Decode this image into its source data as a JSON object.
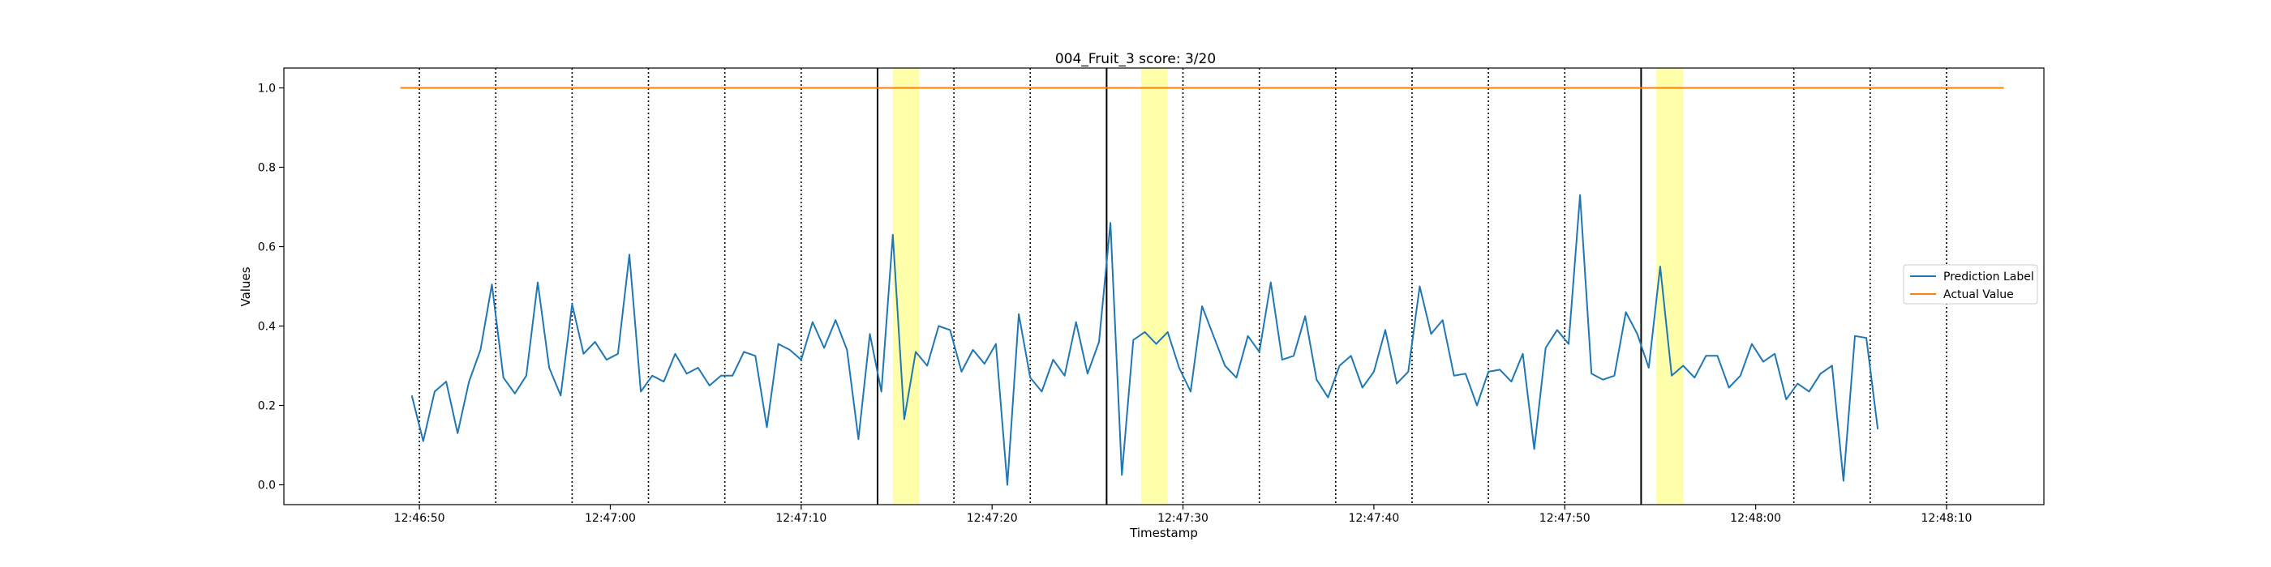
{
  "chart_data": {
    "type": "line",
    "title": "004_Fruit_3 score: 3/20",
    "xlabel": "Timestamp",
    "ylabel": "Values",
    "xlim_seconds": [
      -7.1,
      85.1
    ],
    "x_origin": "12:46:50",
    "ylim": [
      -0.05,
      1.05
    ],
    "yticks": [
      0.0,
      0.2,
      0.4,
      0.6,
      0.8,
      1.0
    ],
    "ytick_labels": [
      "0.0",
      "0.2",
      "0.4",
      "0.6",
      "0.8",
      "1.0"
    ],
    "xticks_seconds": [
      0,
      10,
      20,
      30,
      40,
      50,
      60,
      70,
      80
    ],
    "xtick_labels": [
      "12:46:50",
      "12:47:00",
      "12:47:10",
      "12:47:20",
      "12:47:30",
      "12:47:40",
      "12:47:50",
      "12:48:00",
      "12:48:10"
    ],
    "grid": false,
    "legend_position": "center-right",
    "series": [
      {
        "name": "Prediction Label",
        "color": "#1f77b4",
        "x_start_seconds": -0.4,
        "x_step_seconds": 0.6,
        "values": [
          0.225,
          0.11,
          0.235,
          0.26,
          0.13,
          0.26,
          0.34,
          0.505,
          0.27,
          0.23,
          0.275,
          0.51,
          0.295,
          0.225,
          0.455,
          0.33,
          0.36,
          0.315,
          0.33,
          0.58,
          0.235,
          0.275,
          0.26,
          0.33,
          0.28,
          0.295,
          0.25,
          0.275,
          0.275,
          0.335,
          0.325,
          0.145,
          0.355,
          0.34,
          0.315,
          0.41,
          0.345,
          0.415,
          0.34,
          0.115,
          0.38,
          0.235,
          0.63,
          0.165,
          0.335,
          0.3,
          0.4,
          0.39,
          0.285,
          0.34,
          0.305,
          0.355,
          0.0,
          0.43,
          0.27,
          0.235,
          0.315,
          0.275,
          0.41,
          0.28,
          0.36,
          0.66,
          0.025,
          0.365,
          0.385,
          0.355,
          0.385,
          0.295,
          0.235,
          0.45,
          0.375,
          0.3,
          0.27,
          0.375,
          0.335,
          0.51,
          0.315,
          0.325,
          0.425,
          0.265,
          0.22,
          0.3,
          0.325,
          0.245,
          0.285,
          0.39,
          0.255,
          0.285,
          0.5,
          0.38,
          0.415,
          0.275,
          0.28,
          0.2,
          0.285,
          0.29,
          0.26,
          0.33,
          0.09,
          0.345,
          0.39,
          0.355,
          0.73,
          0.28,
          0.265,
          0.275,
          0.435,
          0.38,
          0.295,
          0.55,
          0.275,
          0.3,
          0.27,
          0.325,
          0.325,
          0.245,
          0.275,
          0.355,
          0.31,
          0.33,
          0.215,
          0.255,
          0.235,
          0.28,
          0.3,
          0.01,
          0.375,
          0.37,
          0.14
        ]
      },
      {
        "name": "Actual Value",
        "color": "#ff7f0e",
        "x": [
          -1.0,
          83.0
        ],
        "values": [
          1.0,
          1.0
        ]
      }
    ],
    "vlines_dotted_seconds": [
      0,
      4,
      8,
      12,
      16,
      20,
      28,
      32,
      40,
      44,
      48,
      52,
      56,
      60,
      72,
      76,
      80
    ],
    "vlines_solid_seconds": [
      24,
      36,
      64
    ],
    "highlight_spans_seconds": [
      [
        24.8,
        26.2
      ],
      [
        37.8,
        39.2
      ],
      [
        64.8,
        66.2
      ]
    ],
    "colors": {
      "vline": "#000000",
      "highlight": "#ffff8c"
    }
  }
}
